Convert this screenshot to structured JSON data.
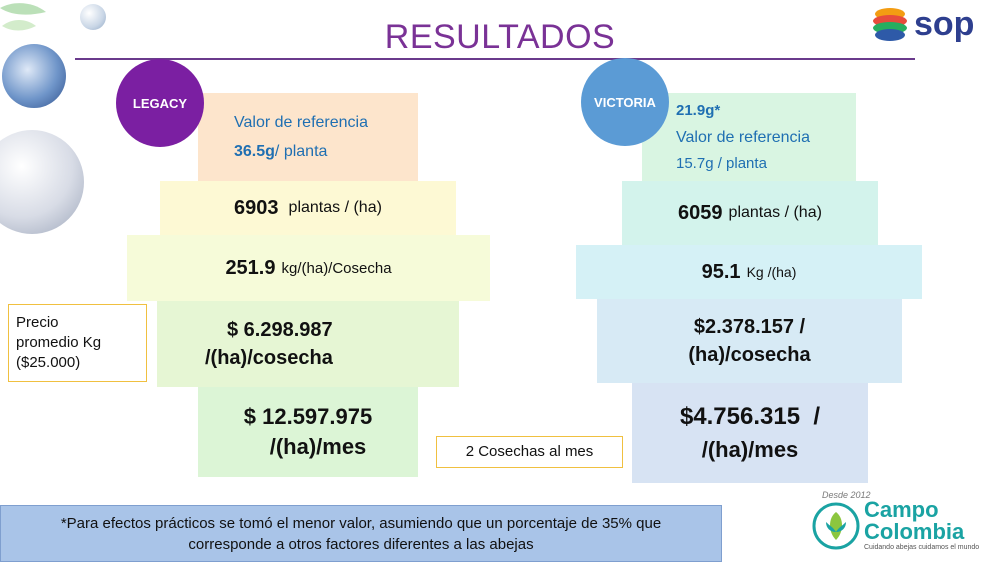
{
  "title": "RESULTADOS",
  "logo": {
    "text": "sop"
  },
  "legacy": {
    "badge": "LEGACY",
    "ref_label": "Valor de referencia",
    "ref_value": "36.5g",
    "ref_unit": "/ planta",
    "plants_value": "6903",
    "plants_unit": "plantas / (ha)",
    "yield_value": "251.9",
    "yield_unit": "kg/(ha)/Cosecha",
    "revenue_line1": "$ 6.298.987",
    "revenue_line2": "/(ha)/cosecha",
    "monthly_line1": "$ 12.597.975",
    "monthly_line2": "/(ha)/mes"
  },
  "victoria": {
    "badge": "VICTORIA",
    "top_value": "21.9g*",
    "ref_label": "Valor de referencia",
    "ref_value": "15.7g / planta",
    "plants_value": "6059",
    "plants_unit": "plantas / (ha)",
    "yield_value": "95.1",
    "yield_unit": "Kg /(ha)",
    "revenue_line1": "$2.378.157 /",
    "revenue_line2": "(ha)/cosecha",
    "monthly_line1": "$4.756.315  /",
    "monthly_line2": "/(ha)/mes"
  },
  "price_note": {
    "line1": "Precio",
    "line2": "promedio Kg",
    "line3": "($25.000)"
  },
  "harvest_note": "2 Cosechas al mes",
  "footer": {
    "line1": "*Para efectos prácticos se tomó el menor valor, asumiendo que un porcentaje de 35% que",
    "line2": "corresponde a otros factores diferentes a las abejas"
  },
  "campo_logo": {
    "tag": "Desde 2012",
    "word1": "Campo",
    "word2": "Colombia",
    "tagline": "Cuidando abejas cuidamos el mundo"
  },
  "colors": {
    "legacy_badge": "#7b1fa2",
    "victoria_badge": "#5b9bd5",
    "title": "#7a3296"
  }
}
